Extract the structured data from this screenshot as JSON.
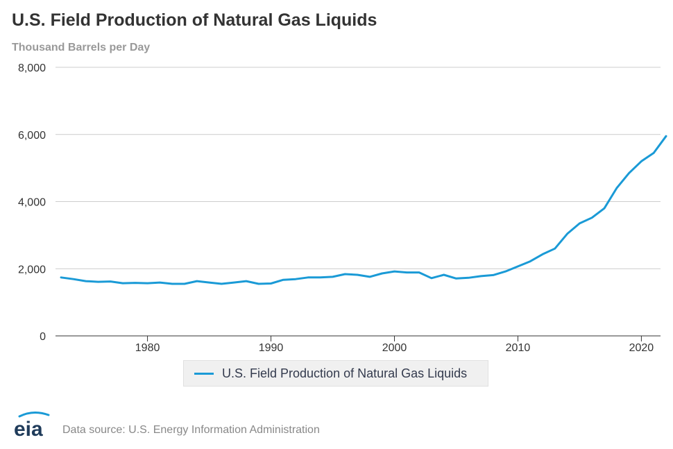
{
  "header": {
    "title": "U.S. Field Production of Natural Gas Liquids",
    "subtitle": "Thousand Barrels per Day"
  },
  "footer": {
    "logo_text": "eia",
    "source": "Data source: U.S. Energy Information Administration"
  },
  "colors": {
    "series": "#1a9ad6",
    "grid": "#cccccc",
    "axis_text": "#333333"
  },
  "chart_data": {
    "type": "line",
    "title": "U.S. Field Production of Natural Gas Liquids",
    "ylabel": "Thousand Barrels per Day",
    "xlabel": "",
    "xlim": [
      1973,
      2022
    ],
    "ylim": [
      0,
      8000
    ],
    "x_ticks": [
      1980,
      1990,
      2000,
      2010,
      2020
    ],
    "y_ticks": [
      0,
      2000,
      4000,
      6000,
      8000
    ],
    "y_tick_labels": [
      "0",
      "2,000",
      "4,000",
      "6,000",
      "8,000"
    ],
    "grid": true,
    "legend_position": "bottom",
    "series": [
      {
        "name": "U.S. Field Production of Natural Gas Liquids",
        "color": "#1a9ad6",
        "x": [
          1973,
          1974,
          1975,
          1976,
          1977,
          1978,
          1979,
          1980,
          1981,
          1982,
          1983,
          1984,
          1985,
          1986,
          1987,
          1988,
          1989,
          1990,
          1991,
          1992,
          1993,
          1994,
          1995,
          1996,
          1997,
          1998,
          1999,
          2000,
          2001,
          2002,
          2003,
          2004,
          2005,
          2006,
          2007,
          2008,
          2009,
          2010,
          2011,
          2012,
          2013,
          2014,
          2015,
          2016,
          2017,
          2018,
          2019,
          2020,
          2021,
          2022
        ],
        "values": [
          1740,
          1690,
          1630,
          1610,
          1620,
          1570,
          1580,
          1570,
          1590,
          1550,
          1550,
          1630,
          1590,
          1550,
          1590,
          1630,
          1550,
          1560,
          1670,
          1690,
          1740,
          1740,
          1760,
          1840,
          1820,
          1760,
          1860,
          1920,
          1890,
          1890,
          1720,
          1820,
          1710,
          1730,
          1780,
          1810,
          1920,
          2070,
          2220,
          2430,
          2600,
          3040,
          3350,
          3520,
          3800,
          4400,
          4850,
          5200,
          5450,
          5950
        ]
      }
    ]
  }
}
